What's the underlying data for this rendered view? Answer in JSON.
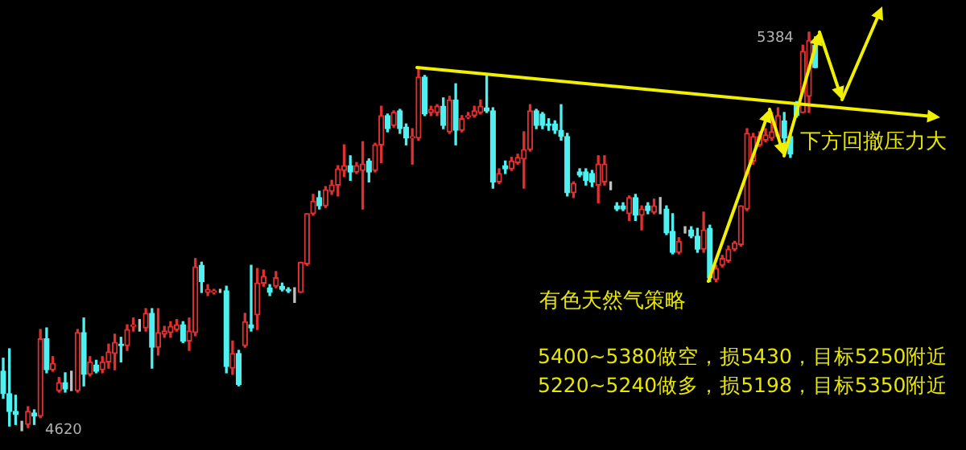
{
  "chart_data": {
    "type": "candlestick",
    "categories": [
      null,
      null,
      null,
      null,
      null,
      null,
      null,
      null,
      null,
      null,
      null,
      null,
      null,
      null,
      null,
      null,
      null,
      null,
      null,
      null,
      null,
      null,
      null,
      null,
      null,
      null,
      null,
      null,
      null,
      null,
      null,
      null,
      null,
      null,
      null,
      null,
      null,
      null,
      null,
      null,
      null,
      null,
      null,
      null,
      null,
      null,
      null,
      null,
      null,
      null,
      null,
      null,
      null,
      null,
      null,
      null,
      null,
      null,
      null,
      null,
      null,
      null,
      null,
      null,
      null,
      null,
      null,
      null,
      null,
      null,
      null,
      null,
      null,
      null,
      null,
      null,
      null,
      null,
      null,
      null,
      null,
      null,
      null,
      null,
      null,
      null,
      null,
      null,
      null,
      null,
      null,
      null,
      null,
      null,
      null,
      null,
      null,
      null,
      null,
      null,
      null,
      null,
      null,
      null,
      null,
      null,
      null,
      null,
      null,
      null,
      null,
      null,
      null,
      null,
      null,
      null,
      null,
      null,
      null,
      null,
      null,
      null,
      null,
      null,
      null,
      null,
      null,
      null,
      null,
      null,
      null,
      null
    ],
    "ohlc": [
      [
        4734,
        4759,
        4682,
        4691
      ],
      [
        4691,
        4777,
        4629,
        4657
      ],
      [
        4657,
        4688,
        4632,
        4651
      ],
      [
        4623,
        4638,
        4620,
        4623
      ],
      [
        4632,
        4666,
        4626,
        4657
      ],
      [
        4654,
        4660,
        4632,
        4648
      ],
      [
        4648,
        4814,
        4645,
        4796
      ],
      [
        4796,
        4817,
        4731,
        4737
      ],
      [
        4737,
        4762,
        4734,
        4749
      ],
      [
        4697,
        4722,
        4694,
        4712
      ],
      [
        4712,
        4731,
        4694,
        4700
      ],
      [
        4703,
        4734,
        4697,
        4703
      ],
      [
        4697,
        4814,
        4694,
        4808
      ],
      [
        4808,
        4836,
        4706,
        4728
      ],
      [
        4728,
        4762,
        4725,
        4752
      ],
      [
        4746,
        4755,
        4731,
        4734
      ],
      [
        4737,
        4762,
        4731,
        4752
      ],
      [
        4752,
        4786,
        4740,
        4771
      ],
      [
        4768,
        4805,
        4737,
        4789
      ],
      [
        4786,
        4799,
        4752,
        4783
      ],
      [
        4783,
        4823,
        4774,
        4814
      ],
      [
        4820,
        4836,
        4811,
        4823
      ],
      [
        4820,
        4833,
        4811,
        4820
      ],
      [
        4817,
        4854,
        4811,
        4845
      ],
      [
        4845,
        4854,
        4740,
        4780
      ],
      [
        4780,
        4854,
        4765,
        4808
      ],
      [
        4805,
        4820,
        4799,
        4811
      ],
      [
        4808,
        4829,
        4799,
        4820
      ],
      [
        4814,
        4833,
        4811,
        4823
      ],
      [
        4823,
        4829,
        4789,
        4792
      ],
      [
        4792,
        4836,
        4774,
        4811
      ],
      [
        4808,
        4950,
        4802,
        4934
      ],
      [
        4937,
        4943,
        4885,
        4906
      ],
      [
        4885,
        4900,
        4879,
        4891
      ],
      [
        4885,
        4891,
        4882,
        4888
      ],
      [
        4888,
        4891,
        4885,
        4888
      ],
      [
        4888,
        4897,
        4731,
        4743
      ],
      [
        4740,
        4792,
        4728,
        4768
      ],
      [
        4768,
        4774,
        4706,
        4709
      ],
      [
        4783,
        4845,
        4780,
        4829
      ],
      [
        4823,
        4937,
        4811,
        4817
      ],
      [
        4842,
        4931,
        4814,
        4903
      ],
      [
        4903,
        4928,
        4897,
        4916
      ],
      [
        4894,
        4900,
        4879,
        4885
      ],
      [
        4897,
        4925,
        4894,
        4913
      ],
      [
        4897,
        4903,
        4888,
        4891
      ],
      [
        4891,
        4894,
        4885,
        4888
      ],
      [
        4882,
        4894,
        4866,
        4882
      ],
      [
        4885,
        4943,
        4885,
        4943
      ],
      [
        4940,
        5036,
        4937,
        5036
      ],
      [
        5036,
        5073,
        5033,
        5060
      ],
      [
        5067,
        5079,
        5045,
        5051
      ],
      [
        5051,
        5088,
        5048,
        5082
      ],
      [
        5079,
        5100,
        5073,
        5091
      ],
      [
        5091,
        5128,
        5070,
        5122
      ],
      [
        5119,
        5168,
        5107,
        5128
      ],
      [
        5128,
        5147,
        5100,
        5116
      ],
      [
        5116,
        5134,
        5113,
        5128
      ],
      [
        5119,
        5174,
        5045,
        5131
      ],
      [
        5137,
        5141,
        5097,
        5116
      ],
      [
        5119,
        5171,
        5116,
        5168
      ],
      [
        5168,
        5242,
        5134,
        5224
      ],
      [
        5224,
        5227,
        5193,
        5199
      ],
      [
        5205,
        5233,
        5202,
        5230
      ],
      [
        5233,
        5236,
        5190,
        5199
      ],
      [
        5202,
        5208,
        5168,
        5181
      ],
      [
        5181,
        5199,
        5131,
        5184
      ],
      [
        5181,
        5313,
        5177,
        5298
      ],
      [
        5298,
        5301,
        5224,
        5227
      ],
      [
        5230,
        5242,
        5224,
        5236
      ],
      [
        5230,
        5245,
        5224,
        5242
      ],
      [
        5242,
        5258,
        5199,
        5205
      ],
      [
        5193,
        5261,
        5190,
        5254
      ],
      [
        5254,
        5285,
        5168,
        5196
      ],
      [
        5196,
        5224,
        5193,
        5218
      ],
      [
        5221,
        5230,
        5218,
        5224
      ],
      [
        5224,
        5242,
        5221,
        5233
      ],
      [
        5230,
        5254,
        5227,
        5242
      ],
      [
        5239,
        5301,
        5230,
        5233
      ],
      [
        5233,
        5239,
        5085,
        5097
      ],
      [
        5097,
        5122,
        5094,
        5113
      ],
      [
        5128,
        5137,
        5113,
        5122
      ],
      [
        5122,
        5144,
        5119,
        5137
      ],
      [
        5134,
        5150,
        5131,
        5144
      ],
      [
        5141,
        5193,
        5085,
        5159
      ],
      [
        5159,
        5245,
        5156,
        5233
      ],
      [
        5233,
        5236,
        5199,
        5205
      ],
      [
        5227,
        5230,
        5199,
        5205
      ],
      [
        5208,
        5218,
        5196,
        5205
      ],
      [
        5208,
        5214,
        5190,
        5196
      ],
      [
        5196,
        5245,
        5177,
        5184
      ],
      [
        5184,
        5190,
        5070,
        5076
      ],
      [
        5076,
        5097,
        5067,
        5094
      ],
      [
        5116,
        5122,
        5107,
        5110
      ],
      [
        5116,
        5122,
        5091,
        5100
      ],
      [
        5113,
        5119,
        5088,
        5097
      ],
      [
        5091,
        5147,
        5057,
        5131
      ],
      [
        5097,
        5147,
        5091,
        5131
      ],
      [
        5091,
        5097,
        5082,
        5091
      ],
      [
        5051,
        5057,
        5042,
        5045
      ],
      [
        5051,
        5057,
        5042,
        5045
      ],
      [
        5036,
        5070,
        5023,
        5067
      ],
      [
        5067,
        5073,
        5023,
        5033
      ],
      [
        5033,
        5051,
        5005,
        5045
      ],
      [
        5051,
        5057,
        5036,
        5042
      ],
      [
        5039,
        5064,
        5036,
        5051
      ],
      [
        5042,
        5067,
        5036,
        5042
      ],
      [
        5045,
        5051,
        4996,
        4999
      ],
      [
        5002,
        5036,
        4959,
        4962
      ],
      [
        4962,
        4990,
        4959,
        4983
      ],
      [
        5005,
        5011,
        4999,
        5005
      ],
      [
        5005,
        5011,
        4990,
        4993
      ],
      [
        4993,
        5008,
        4962,
        4968
      ],
      [
        4968,
        5039,
        4962,
        5005
      ],
      [
        5008,
        5014,
        4906,
        4913
      ],
      [
        4910,
        4937,
        4906,
        4931
      ],
      [
        4937,
        4956,
        4934,
        4950
      ],
      [
        4946,
        4974,
        4943,
        4968
      ],
      [
        4968,
        4983,
        4965,
        4980
      ],
      [
        4977,
        5051,
        4974,
        5051
      ],
      [
        5045,
        5199,
        5042,
        5190
      ],
      [
        5137,
        5190,
        5131,
        5184
      ],
      [
        5168,
        5193,
        5165,
        5184
      ],
      [
        5177,
        5199,
        5174,
        5187
      ],
      [
        5181,
        5230,
        5177,
        5193
      ],
      [
        5184,
        5239,
        5181,
        5224
      ],
      [
        5214,
        5230,
        5168,
        5181
      ],
      [
        5184,
        5187,
        5144,
        5150
      ],
      [
        5245,
        5251,
        5221,
        5224
      ],
      [
        5230,
        5359,
        5230,
        5347
      ],
      [
        5261,
        5384,
        5230,
        5368
      ],
      [
        5359,
        5375,
        5316,
        5316
      ]
    ],
    "colors": [
      "#50f0f0",
      "#50f0f0",
      "#50f0f0",
      "#c0c0c0",
      "#e03030",
      "#50f0f0",
      "#e03030",
      "#50f0f0",
      "#e03030",
      "#e03030",
      "#50f0f0",
      "#c0c0c0",
      "#e03030",
      "#50f0f0",
      "#e03030",
      "#50f0f0",
      "#e03030",
      "#e03030",
      "#e03030",
      "#50f0f0",
      "#e03030",
      "#e03030",
      "#c0c0c0",
      "#e03030",
      "#50f0f0",
      "#e03030",
      "#e03030",
      "#e03030",
      "#e03030",
      "#50f0f0",
      "#e03030",
      "#e03030",
      "#50f0f0",
      "#e03030",
      "#e03030",
      "#c0c0c0",
      "#50f0f0",
      "#e03030",
      "#50f0f0",
      "#e03030",
      "#50f0f0",
      "#e03030",
      "#e03030",
      "#50f0f0",
      "#e03030",
      "#50f0f0",
      "#50f0f0",
      "#c0c0c0",
      "#e03030",
      "#e03030",
      "#e03030",
      "#50f0f0",
      "#e03030",
      "#e03030",
      "#e03030",
      "#e03030",
      "#50f0f0",
      "#e03030",
      "#e03030",
      "#50f0f0",
      "#e03030",
      "#e03030",
      "#50f0f0",
      "#e03030",
      "#50f0f0",
      "#50f0f0",
      "#e03030",
      "#e03030",
      "#50f0f0",
      "#e03030",
      "#e03030",
      "#50f0f0",
      "#e03030",
      "#50f0f0",
      "#e03030",
      "#e03030",
      "#e03030",
      "#e03030",
      "#50f0f0",
      "#50f0f0",
      "#e03030",
      "#50f0f0",
      "#e03030",
      "#e03030",
      "#e03030",
      "#e03030",
      "#50f0f0",
      "#50f0f0",
      "#50f0f0",
      "#50f0f0",
      "#50f0f0",
      "#50f0f0",
      "#e03030",
      "#50f0f0",
      "#50f0f0",
      "#50f0f0",
      "#e03030",
      "#e03030",
      "#c0c0c0",
      "#50f0f0",
      "#50f0f0",
      "#e03030",
      "#50f0f0",
      "#e03030",
      "#50f0f0",
      "#e03030",
      "#c0c0c0",
      "#50f0f0",
      "#50f0f0",
      "#e03030",
      "#c0c0c0",
      "#50f0f0",
      "#50f0f0",
      "#e03030",
      "#50f0f0",
      "#e03030",
      "#e03030",
      "#e03030",
      "#e03030",
      "#e03030",
      "#e03030",
      "#e03030",
      "#e03030",
      "#e03030",
      "#e03030",
      "#e03030",
      "#50f0f0",
      "#50f0f0",
      "#50f0f0",
      "#e03030",
      "#e03030",
      "#50f0f0"
    ],
    "annotations": [
      "5384",
      "4620",
      "下方回撤压力大",
      "有色天然气策略",
      "5400~5380做空，损5430，目标5250附近",
      "5220~5240做多，损5198，目标5350附近"
    ]
  }
}
